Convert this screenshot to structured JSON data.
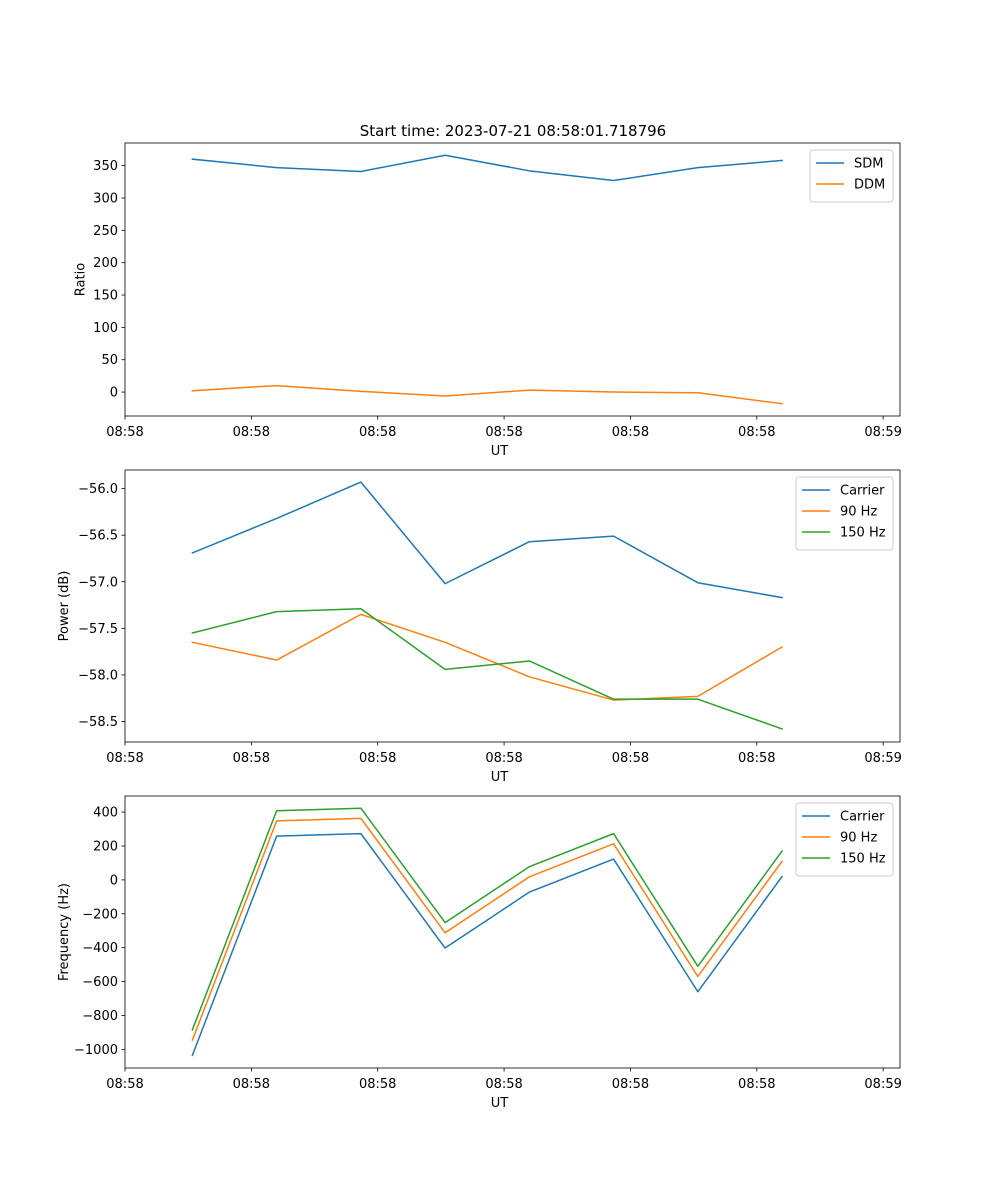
{
  "figure_title": "Start time: 2023-07-21 08:58:01.718796",
  "colors": {
    "blue": "#1f77b4",
    "orange": "#ff7f0e",
    "green": "#2ca02c"
  },
  "chart_data": [
    {
      "type": "line",
      "title": "Start time: 2023-07-21 08:58:01.718796",
      "xlabel": "UT",
      "ylabel": "Ratio",
      "x": [
        1,
        2,
        3,
        4,
        5,
        6,
        7,
        8
      ],
      "xlim": [
        0.2,
        9.4
      ],
      "xtick_positions": [
        0.2,
        1.7,
        3.2,
        4.7,
        6.2,
        7.7,
        9.2
      ],
      "xtick_labels": [
        "08:58",
        "08:58",
        "08:58",
        "08:58",
        "08:58",
        "08:58",
        "08:59"
      ],
      "ylim": [
        -37,
        385
      ],
      "yticks": [
        0,
        50,
        100,
        150,
        200,
        250,
        300,
        350
      ],
      "ytick_labels": [
        "0",
        "50",
        "100",
        "150",
        "200",
        "250",
        "300",
        "350"
      ],
      "legend_position": "top-right",
      "series": [
        {
          "name": "SDM",
          "color": "#1f77b4",
          "values": [
            360,
            347,
            341,
            366,
            342,
            327,
            347,
            358
          ]
        },
        {
          "name": "DDM",
          "color": "#ff7f0e",
          "values": [
            2,
            10,
            1,
            -6,
            3,
            0,
            -1,
            -18
          ]
        }
      ]
    },
    {
      "type": "line",
      "title": "",
      "xlabel": "UT",
      "ylabel": "Power (dB)",
      "x": [
        1,
        2,
        3,
        4,
        5,
        6,
        7,
        8
      ],
      "xlim": [
        0.2,
        9.4
      ],
      "xtick_positions": [
        0.2,
        1.7,
        3.2,
        4.7,
        6.2,
        7.7,
        9.2
      ],
      "xtick_labels": [
        "08:58",
        "08:58",
        "08:58",
        "08:58",
        "08:58",
        "08:58",
        "08:59"
      ],
      "ylim": [
        -58.72,
        -55.8
      ],
      "yticks": [
        -58.5,
        -58.0,
        -57.5,
        -57.0,
        -56.5,
        -56.0
      ],
      "ytick_labels": [
        "−58.5",
        "−58.0",
        "−57.5",
        "−57.0",
        "−56.5",
        "−56.0"
      ],
      "legend_position": "top-right",
      "series": [
        {
          "name": "Carrier",
          "color": "#1f77b4",
          "values": [
            -56.69,
            -56.32,
            -55.93,
            -57.02,
            -56.57,
            -56.51,
            -57.01,
            -57.17
          ]
        },
        {
          "name": "90 Hz",
          "color": "#ff7f0e",
          "values": [
            -57.65,
            -57.84,
            -57.35,
            -57.65,
            -58.02,
            -58.27,
            -58.23,
            -57.7
          ]
        },
        {
          "name": "150 Hz",
          "color": "#2ca02c",
          "values": [
            -57.55,
            -57.32,
            -57.29,
            -57.94,
            -57.85,
            -58.26,
            -58.26,
            -58.58
          ]
        }
      ]
    },
    {
      "type": "line",
      "title": "",
      "xlabel": "UT",
      "ylabel": "Frequency (Hz)",
      "x": [
        1,
        2,
        3,
        4,
        5,
        6,
        7,
        8
      ],
      "xlim": [
        0.2,
        9.4
      ],
      "xtick_positions": [
        0.2,
        1.7,
        3.2,
        4.7,
        6.2,
        7.7,
        9.2
      ],
      "xtick_labels": [
        "08:58",
        "08:58",
        "08:58",
        "08:58",
        "08:58",
        "08:58",
        "08:59"
      ],
      "ylim": [
        -1110,
        495
      ],
      "yticks": [
        -1000,
        -800,
        -600,
        -400,
        -200,
        0,
        200,
        400
      ],
      "ytick_labels": [
        "−1000",
        "−800",
        "−600",
        "−400",
        "−200",
        "0",
        "200",
        "400"
      ],
      "legend_position": "top-right",
      "series": [
        {
          "name": "Carrier",
          "color": "#1f77b4",
          "values": [
            -1035,
            258,
            273,
            -402,
            -72,
            123,
            -660,
            20
          ]
        },
        {
          "name": "90 Hz",
          "color": "#ff7f0e",
          "values": [
            -945,
            348,
            363,
            -312,
            18,
            213,
            -570,
            110
          ]
        },
        {
          "name": "150 Hz",
          "color": "#2ca02c",
          "values": [
            -885,
            408,
            423,
            -252,
            78,
            273,
            -510,
            170
          ]
        }
      ]
    }
  ]
}
